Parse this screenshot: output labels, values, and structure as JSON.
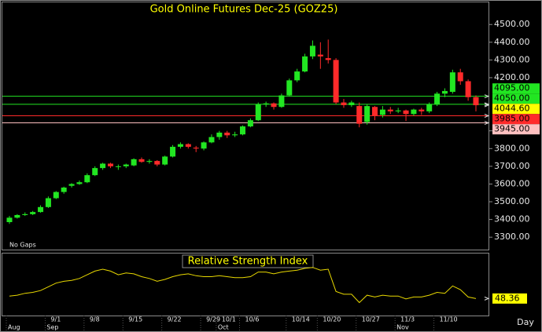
{
  "chart_data": [
    {
      "type": "candlestick",
      "title": "Gold Online Futures Dec-25 (GOZ25)",
      "note": "No Gaps",
      "period": "Day",
      "up_color": "#22e622",
      "down_color": "#ff2a2a",
      "categories": [
        null,
        null,
        null,
        null,
        null,
        "9/1",
        null,
        null,
        null,
        null,
        "9/8",
        null,
        null,
        null,
        null,
        "9/15",
        null,
        null,
        null,
        null,
        "9/22",
        null,
        null,
        null,
        null,
        "9/29",
        null,
        "10/1",
        null,
        null,
        "10/6",
        null,
        null,
        null,
        null,
        null,
        "10/14",
        null,
        null,
        null,
        "10/20",
        null,
        null,
        null,
        null,
        "10/27",
        null,
        null,
        null,
        null,
        "11/3",
        null,
        null,
        null,
        null,
        "11/10",
        null,
        null,
        null,
        null,
        null
      ],
      "category_months": [
        "Aug",
        null,
        null,
        null,
        null,
        "Sep",
        null,
        null,
        null,
        null,
        null,
        null,
        null,
        null,
        null,
        null,
        null,
        null,
        null,
        null,
        null,
        null,
        null,
        null,
        null,
        null,
        null,
        "Oct",
        null,
        null,
        null,
        null,
        null,
        null,
        null,
        null,
        null,
        null,
        null,
        null,
        null,
        null,
        null,
        null,
        null,
        null,
        null,
        null,
        null,
        null,
        "Nov",
        null,
        null,
        null,
        null,
        null,
        null,
        null,
        null,
        null,
        null
      ],
      "open": [
        3385,
        3410,
        3425,
        3430,
        3442,
        3470,
        3520,
        3555,
        3590,
        3600,
        3610,
        3650,
        3690,
        3715,
        3700,
        3700,
        3705,
        3740,
        3725,
        3730,
        3710,
        3755,
        3810,
        3825,
        3805,
        3800,
        3835,
        3865,
        3890,
        3875,
        3880,
        3925,
        3960,
        4050,
        4055,
        4035,
        4100,
        4185,
        4235,
        4320,
        4330,
        4310,
        4300,
        4060,
        4045,
        4040,
        3950,
        4035,
        3990,
        4020,
        4010,
        4015,
        3995,
        4020,
        4010,
        4050,
        4110,
        4120,
        4230,
        4180,
        4090
      ],
      "high": [
        3420,
        3430,
        3440,
        3448,
        3480,
        3530,
        3560,
        3585,
        3605,
        3620,
        3660,
        3700,
        3720,
        3720,
        3710,
        3715,
        3745,
        3750,
        3740,
        3735,
        3760,
        3820,
        3835,
        3830,
        3815,
        3840,
        3880,
        3900,
        3900,
        3895,
        3930,
        3970,
        4060,
        4065,
        4060,
        4110,
        4195,
        4250,
        4335,
        4410,
        4400,
        4415,
        4310,
        4080,
        4070,
        4060,
        4050,
        4040,
        4040,
        4035,
        4030,
        4020,
        4025,
        4030,
        4060,
        4120,
        4140,
        4245,
        4250,
        4190,
        4100
      ],
      "low": [
        3375,
        3405,
        3420,
        3425,
        3438,
        3465,
        3515,
        3545,
        3580,
        3595,
        3605,
        3645,
        3680,
        3690,
        3680,
        3690,
        3700,
        3720,
        3715,
        3700,
        3705,
        3750,
        3800,
        3800,
        3780,
        3790,
        3830,
        3850,
        3860,
        3865,
        3875,
        3920,
        3955,
        4035,
        4020,
        4030,
        4095,
        4175,
        4230,
        4305,
        4250,
        4280,
        4050,
        4030,
        4035,
        3920,
        3935,
        3960,
        3975,
        3995,
        4000,
        3955,
        3985,
        3990,
        4000,
        4040,
        4090,
        4110,
        4160,
        4070,
        4010
      ],
      "close": [
        3410,
        3425,
        3430,
        3442,
        3470,
        3520,
        3555,
        3580,
        3600,
        3610,
        3650,
        3690,
        3715,
        3700,
        3700,
        3710,
        3740,
        3725,
        3730,
        3710,
        3755,
        3810,
        3825,
        3810,
        3800,
        3835,
        3865,
        3890,
        3875,
        3880,
        3925,
        3960,
        4050,
        4055,
        4035,
        4100,
        4185,
        4235,
        4320,
        4380,
        4320,
        4300,
        4060,
        4045,
        4060,
        3940,
        4040,
        3985,
        4020,
        4010,
        4015,
        3995,
        4020,
        4010,
        4050,
        4110,
        4125,
        4230,
        4180,
        4090,
        4044.6
      ],
      "ylim": [
        3230,
        4625
      ],
      "yticks": [
        {
          "value": 3300,
          "label": "3300.00"
        },
        {
          "value": 3400,
          "label": "3400.00"
        },
        {
          "value": 3500,
          "label": "3500.00"
        },
        {
          "value": 3600,
          "label": "3600.00"
        },
        {
          "value": 3700,
          "label": "3700.00"
        },
        {
          "value": 3800,
          "label": "3800.00"
        },
        {
          "value": 3900,
          "label": "3900.00"
        },
        {
          "value": 4200,
          "label": "4200.00"
        },
        {
          "value": 4300,
          "label": "4300.00"
        },
        {
          "value": 4400,
          "label": "4400.00"
        },
        {
          "value": 4500,
          "label": "4500.00"
        }
      ],
      "price_lines": [
        {
          "value": 4095,
          "label": "4095.00",
          "color": "#22e622"
        },
        {
          "value": 4050,
          "label": "4050.00",
          "color": "#22e622"
        },
        {
          "value": 3985,
          "label": "3985.00",
          "color": "#ff2a2a"
        },
        {
          "value": 3945,
          "label": "3945.00",
          "color": "#ffc0c0"
        }
      ],
      "last_price": {
        "value": 4044.6,
        "label": "4044.60",
        "color": "#ffff00"
      }
    },
    {
      "type": "line",
      "title": "Relative Strength Index",
      "color": "#e8d800",
      "ylim": [
        30,
        97
      ],
      "values": [
        51,
        52,
        54,
        55,
        57,
        61,
        65,
        67,
        68,
        70,
        74,
        78,
        80,
        78,
        74,
        76,
        75,
        72,
        70,
        67,
        69,
        72,
        74,
        75,
        73,
        72,
        72,
        73,
        72,
        71,
        71,
        72,
        77,
        77,
        75,
        77,
        78,
        79,
        81,
        82,
        79,
        80,
        56,
        53,
        53,
        44,
        52,
        50,
        52,
        51,
        51,
        48,
        50,
        50,
        52,
        55,
        54,
        62,
        58,
        50,
        48.36
      ]
    }
  ]
}
